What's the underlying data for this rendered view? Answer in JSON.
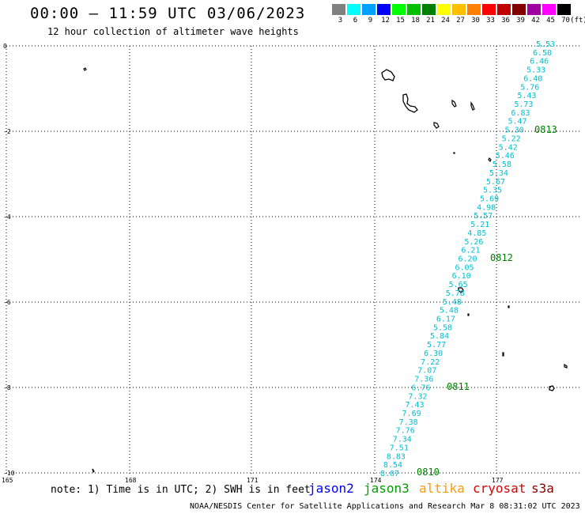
{
  "header": {
    "title": "00:00 – 11:59 UTC 03/06/2023",
    "subtitle": "12 hour collection of altimeter wave heights"
  },
  "legend": {
    "unit": "(ft)",
    "bins": [
      {
        "label": "3",
        "color": "#808080"
      },
      {
        "label": "6",
        "color": "#00ffff"
      },
      {
        "label": "9",
        "color": "#00a0ff"
      },
      {
        "label": "12",
        "color": "#0000ff"
      },
      {
        "label": "15",
        "color": "#00ff00"
      },
      {
        "label": "18",
        "color": "#00c000"
      },
      {
        "label": "21",
        "color": "#008000"
      },
      {
        "label": "24",
        "color": "#ffff00"
      },
      {
        "label": "27",
        "color": "#ffc000"
      },
      {
        "label": "30",
        "color": "#ff8000"
      },
      {
        "label": "33",
        "color": "#ff0000"
      },
      {
        "label": "36",
        "color": "#c00000"
      },
      {
        "label": "39",
        "color": "#800000"
      },
      {
        "label": "42",
        "color": "#a000a0"
      },
      {
        "label": "45",
        "color": "#ff00ff"
      },
      {
        "label": "70",
        "color": "#000000"
      }
    ]
  },
  "axes": {
    "lat_labels": [
      "0",
      "-2",
      "-4",
      "-6",
      "-8",
      "-10"
    ],
    "lon_labels": [
      "165",
      "168",
      "171",
      "174",
      "177"
    ]
  },
  "track": {
    "color": "#00c0d0",
    "heights": [
      "5.53",
      "6.50",
      "6.46",
      "5.33",
      "6.40",
      "5.76",
      "5.43",
      "5.73",
      "6.83",
      "5.47",
      "5.30",
      "5.22",
      "5.42",
      "5.46",
      "5.58",
      "5.34",
      "5.67",
      "5.35",
      "5.69",
      "4.98",
      "5.57",
      "5.21",
      "4.85",
      "5.26",
      "6.21",
      "6.20",
      "6.05",
      "6.10",
      "5.65",
      "5.78",
      "5.48",
      "5.48",
      "6.17",
      "5.58",
      "5.84",
      "5.77",
      "6.30",
      "7.22",
      "7.07",
      "7.36",
      "6.76",
      "7.32",
      "7.43",
      "7.69",
      "7.38",
      "7.76",
      "7.34",
      "7.51",
      "8.83",
      "8.54",
      "8.07"
    ],
    "times": [
      {
        "label": "0813",
        "color": "#008000"
      },
      {
        "label": "0812",
        "color": "#008000"
      },
      {
        "label": "0811",
        "color": "#008000"
      },
      {
        "label": "0810",
        "color": "#008000"
      }
    ]
  },
  "footer": {
    "note": "note: 1) Time is in UTC; 2) SWH is in feet",
    "credit": "NOAA/NESDIS Center for Satellite Applications and Research   Mar  8 08:31:02 UTC 2023"
  },
  "satellites": [
    {
      "name": "jason2",
      "color": "#0000ff"
    },
    {
      "name": "jason3",
      "color": "#00a000"
    },
    {
      "name": "altika",
      "color": "#ff9900"
    },
    {
      "name": "cryosat",
      "color": "#dd0000"
    },
    {
      "name": "s3a",
      "color": "#880000"
    }
  ]
}
